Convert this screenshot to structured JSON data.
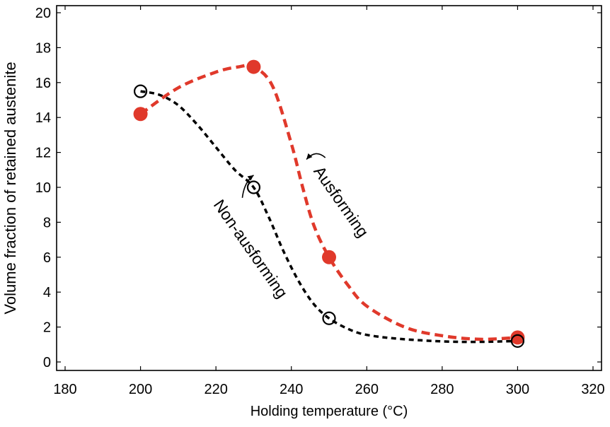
{
  "chart_data": {
    "type": "scatter",
    "xlabel": "Holding temperature (°C)",
    "ylabel": "Volume fraction of retained austenite",
    "xlim": [
      180,
      320
    ],
    "ylim": [
      0,
      20
    ],
    "xticks": [
      180,
      200,
      220,
      240,
      260,
      280,
      300,
      320
    ],
    "yticks": [
      0,
      2,
      4,
      6,
      8,
      10,
      12,
      14,
      16,
      18,
      20
    ],
    "grid": false,
    "series": [
      {
        "name": "Ausforming",
        "color": "#e0392b",
        "marker": "filled-circle",
        "line": "dashed",
        "x": [
          200,
          230,
          250,
          300
        ],
        "y": [
          14.2,
          16.9,
          6.0,
          1.4
        ],
        "curve": [
          [
            200,
            14.2
          ],
          [
            210,
            15.7
          ],
          [
            220,
            16.6
          ],
          [
            226,
            16.9
          ],
          [
            230,
            16.9
          ],
          [
            235,
            15.8
          ],
          [
            240,
            12.5
          ],
          [
            243,
            10.0
          ],
          [
            246,
            7.8
          ],
          [
            250,
            6.0
          ],
          [
            255,
            4.4
          ],
          [
            260,
            3.2
          ],
          [
            270,
            2.0
          ],
          [
            280,
            1.5
          ],
          [
            290,
            1.3
          ],
          [
            300,
            1.4
          ]
        ]
      },
      {
        "name": "Non-ausforming",
        "color": "#000000",
        "marker": "open-circle",
        "line": "dashed",
        "x": [
          200,
          230,
          250,
          300
        ],
        "y": [
          15.5,
          10.0,
          2.5,
          1.2
        ],
        "curve": [
          [
            200,
            15.5
          ],
          [
            205,
            15.3
          ],
          [
            210,
            14.7
          ],
          [
            215,
            13.6
          ],
          [
            220,
            12.3
          ],
          [
            225,
            11.0
          ],
          [
            230,
            10.0
          ],
          [
            234,
            8.3
          ],
          [
            238,
            6.3
          ],
          [
            242,
            4.6
          ],
          [
            246,
            3.3
          ],
          [
            250,
            2.5
          ],
          [
            255,
            1.9
          ],
          [
            260,
            1.55
          ],
          [
            270,
            1.3
          ],
          [
            285,
            1.15
          ],
          [
            300,
            1.2
          ]
        ]
      }
    ],
    "annotations": [
      {
        "text": "Ausforming",
        "x": 252,
        "y": 9.0,
        "rotation": 55
      },
      {
        "text": "Non-ausforming",
        "x": 228,
        "y": 6.3,
        "rotation": 55
      }
    ],
    "arrows": [
      {
        "path": [
          [
            249,
            11.7
          ],
          [
            246.5,
            12.2
          ],
          [
            244,
            11.6
          ]
        ]
      },
      {
        "path": [
          [
            227,
            9.4
          ],
          [
            227.5,
            10.3
          ],
          [
            230,
            10.7
          ]
        ]
      }
    ]
  }
}
